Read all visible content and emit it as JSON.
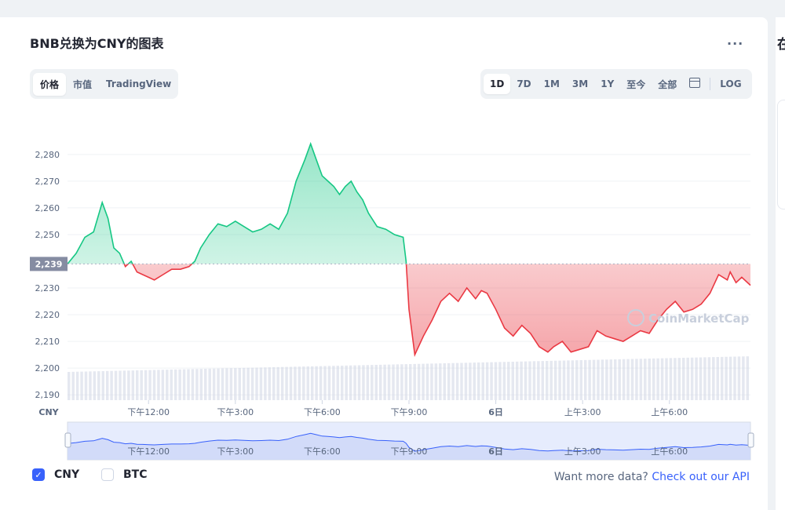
{
  "title": "BNB兑换为CNY的图表",
  "more_label": "...",
  "view_tabs": [
    {
      "label": "价格",
      "active": true
    },
    {
      "label": "市值",
      "active": false
    },
    {
      "label": "TradingView",
      "active": false
    }
  ],
  "range_tabs": [
    {
      "label": "1D",
      "active": true
    },
    {
      "label": "7D",
      "active": false
    },
    {
      "label": "1M",
      "active": false
    },
    {
      "label": "3M",
      "active": false
    },
    {
      "label": "1Y",
      "active": false
    },
    {
      "label": "至今",
      "active": false
    },
    {
      "label": "全部",
      "active": false
    }
  ],
  "calendar_icon": "calendar-icon",
  "log_label": "LOG",
  "right_panel_heading": "在",
  "watermark": "CoinMarketCap",
  "colors": {
    "up": "#16c784",
    "down": "#ea3943",
    "accent": "#3861fb",
    "volume": "#cfd6e4"
  },
  "chart_data": {
    "type": "area",
    "currency_label": "CNY",
    "reference_value": 2239,
    "reference_label": "2,239",
    "ylim": [
      2188,
      2292
    ],
    "y_ticks": [
      "2,190",
      "2,200",
      "2,210",
      "2,220",
      "2,230",
      "2,250",
      "2,260",
      "2,270",
      "2,280"
    ],
    "y_tick_values": [
      2190,
      2200,
      2210,
      2220,
      2230,
      2250,
      2260,
      2270,
      2280
    ],
    "x_ticks": [
      "下午12:00",
      "下午3:00",
      "下午6:00",
      "下午9:00",
      "6日",
      "上午3:00",
      "上午6:00"
    ],
    "x_tick_hours": [
      12,
      15,
      18,
      21,
      24,
      27,
      30
    ],
    "x_range_hours": [
      9.2,
      32.8
    ],
    "series": [
      {
        "x": [
          9.2,
          9.5,
          9.8,
          10.1,
          10.4,
          10.6,
          10.8,
          11.0,
          11.2,
          11.4,
          11.6,
          11.8,
          12.0,
          12.2,
          12.5,
          12.8,
          13.1,
          13.4,
          13.6,
          13.8,
          14.1,
          14.4,
          14.7,
          15.0,
          15.3,
          15.6,
          15.9,
          16.2,
          16.5,
          16.8,
          17.1,
          17.4,
          17.6,
          17.8,
          18.0,
          18.2,
          18.4,
          18.6,
          18.8,
          19.0,
          19.2,
          19.4,
          19.6,
          19.9,
          20.2,
          20.5,
          20.8,
          20.9,
          21.0,
          21.2,
          21.5,
          21.8,
          22.1,
          22.4,
          22.7,
          23.0,
          23.3,
          23.5,
          23.7,
          24.0,
          24.3,
          24.6,
          24.9,
          25.2,
          25.5,
          25.8,
          26.0,
          26.3,
          26.6,
          26.9,
          27.2,
          27.5,
          27.8,
          28.1,
          28.4,
          28.7,
          29.0,
          29.3,
          29.6,
          29.9,
          30.2,
          30.5,
          30.8,
          31.1,
          31.4,
          31.7,
          32.0,
          32.1,
          32.3,
          32.5,
          32.8
        ],
        "values": [
          2239,
          2243,
          2249,
          2251,
          2262,
          2256,
          2245,
          2243,
          2238,
          2240,
          2236,
          2235,
          2234,
          2233,
          2235,
          2237,
          2237,
          2238,
          2240,
          2245,
          2250,
          2254,
          2253,
          2255,
          2253,
          2251,
          2252,
          2254,
          2252,
          2258,
          2270,
          2278,
          2284,
          2278,
          2272,
          2270,
          2268,
          2265,
          2268,
          2270,
          2266,
          2263,
          2258,
          2253,
          2252,
          2250,
          2249,
          2240,
          2222,
          2205,
          2212,
          2218,
          2225,
          2228,
          2225,
          2230,
          2226,
          2229,
          2228,
          2222,
          2215,
          2212,
          2216,
          2213,
          2208,
          2206,
          2208,
          2210,
          2206,
          2207,
          2208,
          2214,
          2212,
          2211,
          2210,
          2212,
          2214,
          2213,
          2218,
          2222,
          2225,
          2221,
          2222,
          2224,
          2228,
          2235,
          2233,
          2236,
          2232,
          2234,
          2231
        ]
      }
    ],
    "volume_bars": 160
  },
  "legend": [
    {
      "label": "CNY",
      "checked": true
    },
    {
      "label": "BTC",
      "checked": false
    }
  ],
  "api_text": "Want more data?",
  "api_link": "Check out our API"
}
